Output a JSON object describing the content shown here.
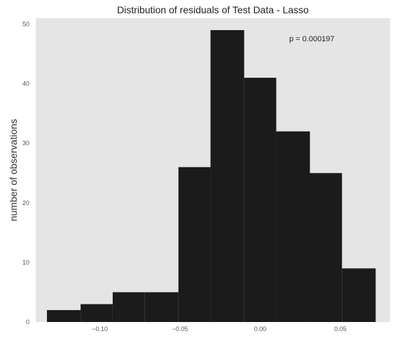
{
  "chart_data": {
    "type": "bar",
    "title": "Distribution of residuals of Test Data - Lasso",
    "xlabel": "",
    "ylabel": "number of observations",
    "annotation": "p = 0.000197",
    "bin_edges": [
      -0.133,
      -0.112,
      -0.092,
      -0.072,
      -0.051,
      -0.031,
      -0.01,
      0.01,
      0.031,
      0.051,
      0.072
    ],
    "values": [
      2,
      3,
      5,
      5,
      26,
      49,
      41,
      32,
      25,
      9
    ],
    "xlim": [
      -0.14,
      0.081
    ],
    "ylim": [
      0,
      51
    ],
    "xticks": [
      -0.1,
      -0.05,
      0.0,
      0.05
    ],
    "xtick_labels": [
      "−0.10",
      "−0.05",
      "0.00",
      "0.05"
    ],
    "yticks": [
      0,
      10,
      20,
      30,
      40,
      50
    ],
    "ytick_labels": [
      "0",
      "10",
      "20",
      "30",
      "40",
      "50"
    ],
    "grid": false,
    "colors": {
      "background": "#e5e5e5",
      "bar": "#1b1b1b"
    }
  }
}
